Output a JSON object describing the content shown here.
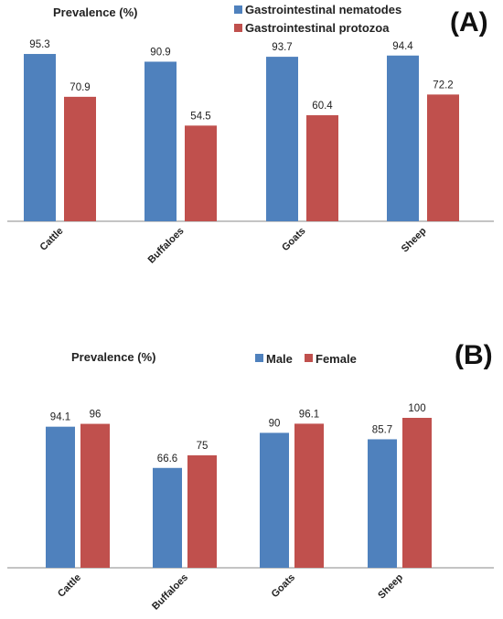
{
  "chart_data": [
    {
      "type": "bar",
      "panel_label": "(A)",
      "ylabel": "Prevalence (%)",
      "categories": [
        "Cattle",
        "Buffaloes",
        "Goats",
        "Sheep"
      ],
      "series": [
        {
          "name": "Gastrointestinal nematodes",
          "color": "#4F81BD",
          "values": [
            95.3,
            90.9,
            93.7,
            94.4
          ]
        },
        {
          "name": "Gastrointestinal protozoa",
          "color": "#C0504D",
          "values": [
            70.9,
            54.5,
            60.4,
            72.2
          ]
        }
      ],
      "ylim": [
        0,
        100
      ],
      "grid": false,
      "legend_position": "top-center"
    },
    {
      "type": "bar",
      "panel_label": "(B)",
      "ylabel": "Prevalence (%)",
      "categories": [
        "Cattle",
        "Buffaloes",
        "Goats",
        "Sheep"
      ],
      "series": [
        {
          "name": "Male",
          "color": "#4F81BD",
          "values": [
            94.1,
            66.6,
            90,
            85.7
          ]
        },
        {
          "name": "Female",
          "color": "#C0504D",
          "values": [
            96,
            75,
            96.1,
            100
          ]
        }
      ],
      "ylim": [
        0,
        100
      ],
      "grid": false,
      "legend_position": "top-center"
    }
  ]
}
